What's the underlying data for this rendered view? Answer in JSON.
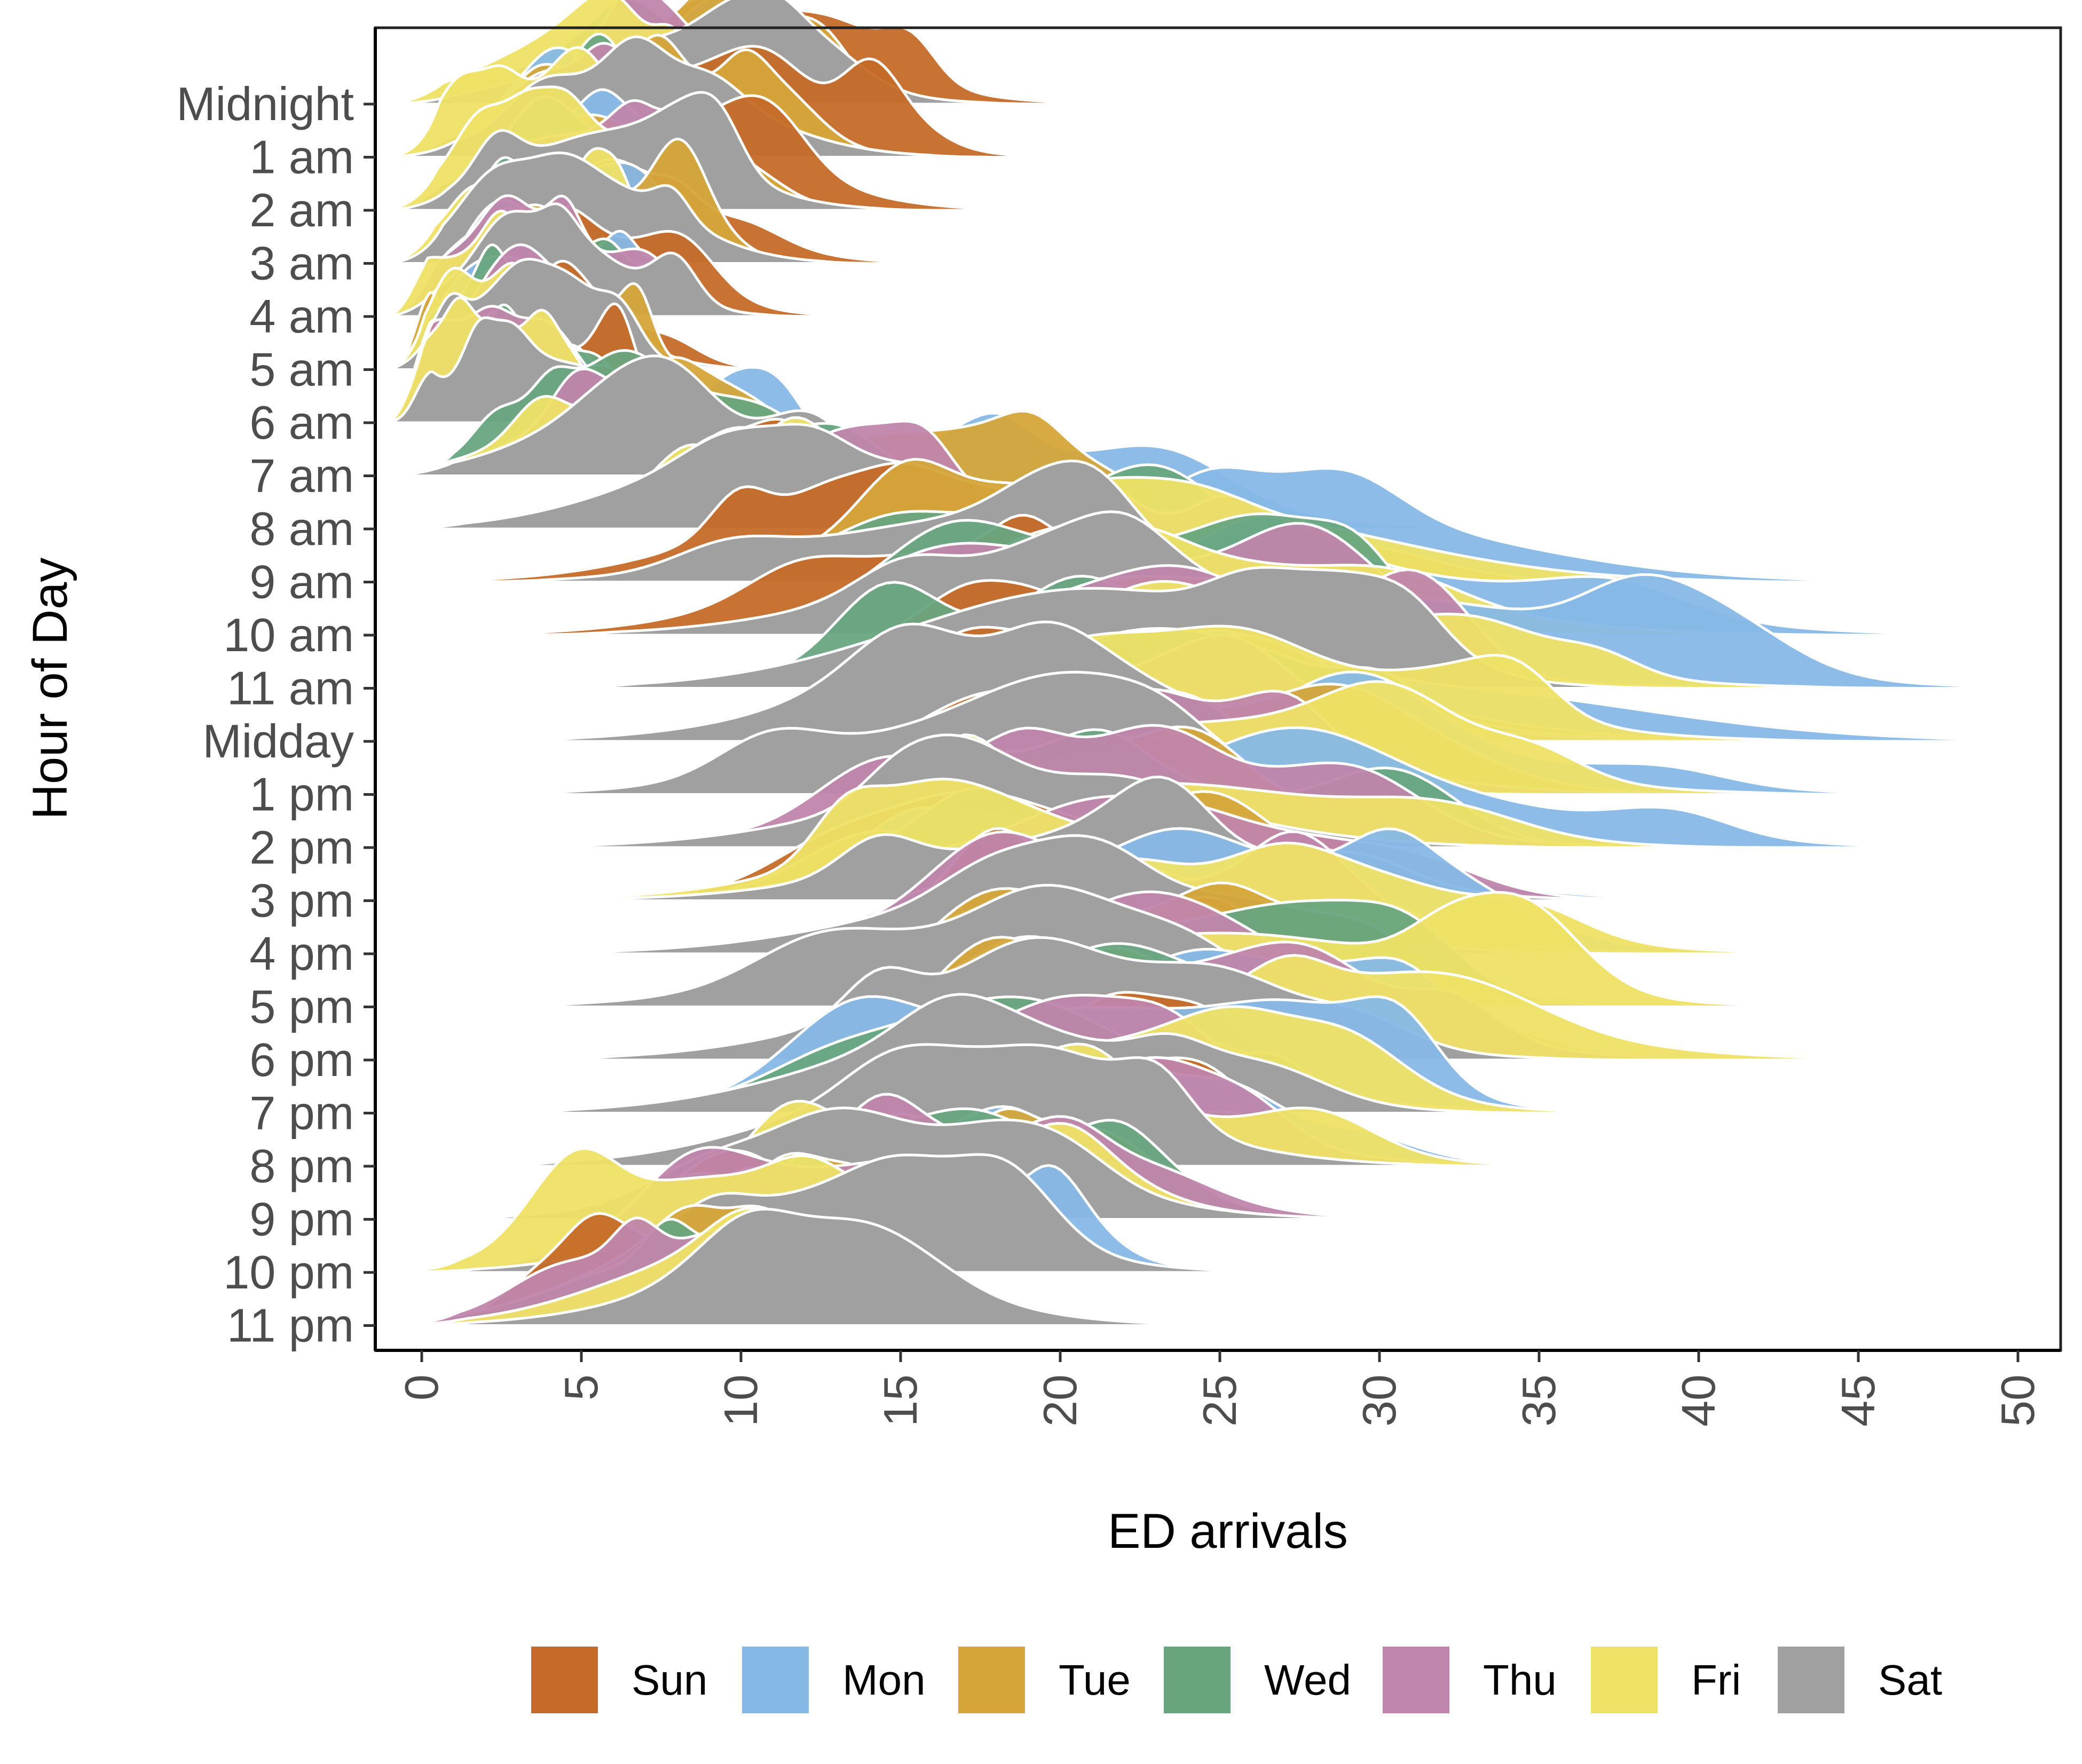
{
  "chart_data": {
    "type": "ridgeline",
    "xlabel": "ED arrivals",
    "ylabel": "Hour of Day",
    "xlim": [
      -1.5,
      50.5
    ],
    "x_ticks": [
      0,
      5,
      10,
      15,
      20,
      25,
      30,
      35,
      40,
      45,
      50
    ],
    "x_tick_labels": [
      "0",
      "5",
      "10",
      "15",
      "20",
      "25",
      "30",
      "35",
      "40",
      "45",
      "50"
    ],
    "grid": false,
    "legend_position": "bottom",
    "categories": [
      "Midnight",
      "1 am",
      "2 am",
      "3 am",
      "4 am",
      "5 am",
      "6 am",
      "7 am",
      "8 am",
      "9 am",
      "10 am",
      "11 am",
      "Midday",
      "1 pm",
      "2 pm",
      "3 pm",
      "4 pm",
      "5 pm",
      "6 pm",
      "7 pm",
      "8 pm",
      "9 pm",
      "10 pm",
      "11 pm"
    ],
    "series": [
      {
        "name": "Sun",
        "color": "#C56A28",
        "mode": [
          9.5,
          8.5,
          8,
          6.5,
          5,
          4,
          3,
          7,
          10,
          14,
          17,
          19,
          20,
          20,
          20,
          21,
          21,
          21,
          21,
          19,
          18,
          15,
          11,
          9
        ]
      },
      {
        "name": "Mon",
        "color": "#86B8E6",
        "mode": [
          7.5,
          7,
          6,
          5,
          4,
          3.5,
          3,
          8,
          18,
          27,
          29,
          30,
          31,
          28,
          28,
          23,
          24,
          24,
          25,
          21,
          20,
          17,
          13,
          10
        ]
      },
      {
        "name": "Tue",
        "color": "#D5A53A",
        "mode": [
          7.5,
          6.5,
          5.5,
          4.5,
          3.5,
          3,
          3,
          8,
          14,
          20,
          22,
          23,
          24,
          23,
          22,
          22,
          23,
          23,
          24,
          19,
          18,
          15,
          12,
          9
        ]
      },
      {
        "name": "Wed",
        "color": "#68A57F",
        "mode": [
          6.5,
          6,
          5,
          4,
          3.5,
          3,
          3,
          7,
          13,
          19,
          21,
          22,
          23,
          22,
          21,
          21,
          22,
          22,
          23,
          19,
          18,
          15,
          11,
          8
        ]
      },
      {
        "name": "Thu",
        "color": "#C085AB",
        "mode": [
          6,
          5.5,
          4.5,
          4,
          3.5,
          3,
          3,
          6,
          12,
          19,
          21,
          22,
          23,
          22,
          21,
          21,
          22,
          22,
          23,
          20,
          19,
          16,
          12,
          8
        ]
      },
      {
        "name": "Fri",
        "color": "#EEE266",
        "mode": [
          5,
          4.5,
          4,
          3.5,
          2.5,
          2,
          2,
          6,
          13,
          24,
          25,
          26,
          25,
          25,
          23,
          19,
          25,
          25,
          27,
          21,
          19,
          15,
          9,
          10
        ]
      },
      {
        "name": "Sat",
        "color": "#A0A0A0",
        "mode": [
          8,
          7,
          6,
          5,
          4,
          3,
          3,
          7,
          10,
          17,
          20,
          21,
          18,
          18,
          19,
          21,
          20,
          18,
          20,
          18,
          17,
          15,
          13,
          12
        ]
      }
    ]
  }
}
